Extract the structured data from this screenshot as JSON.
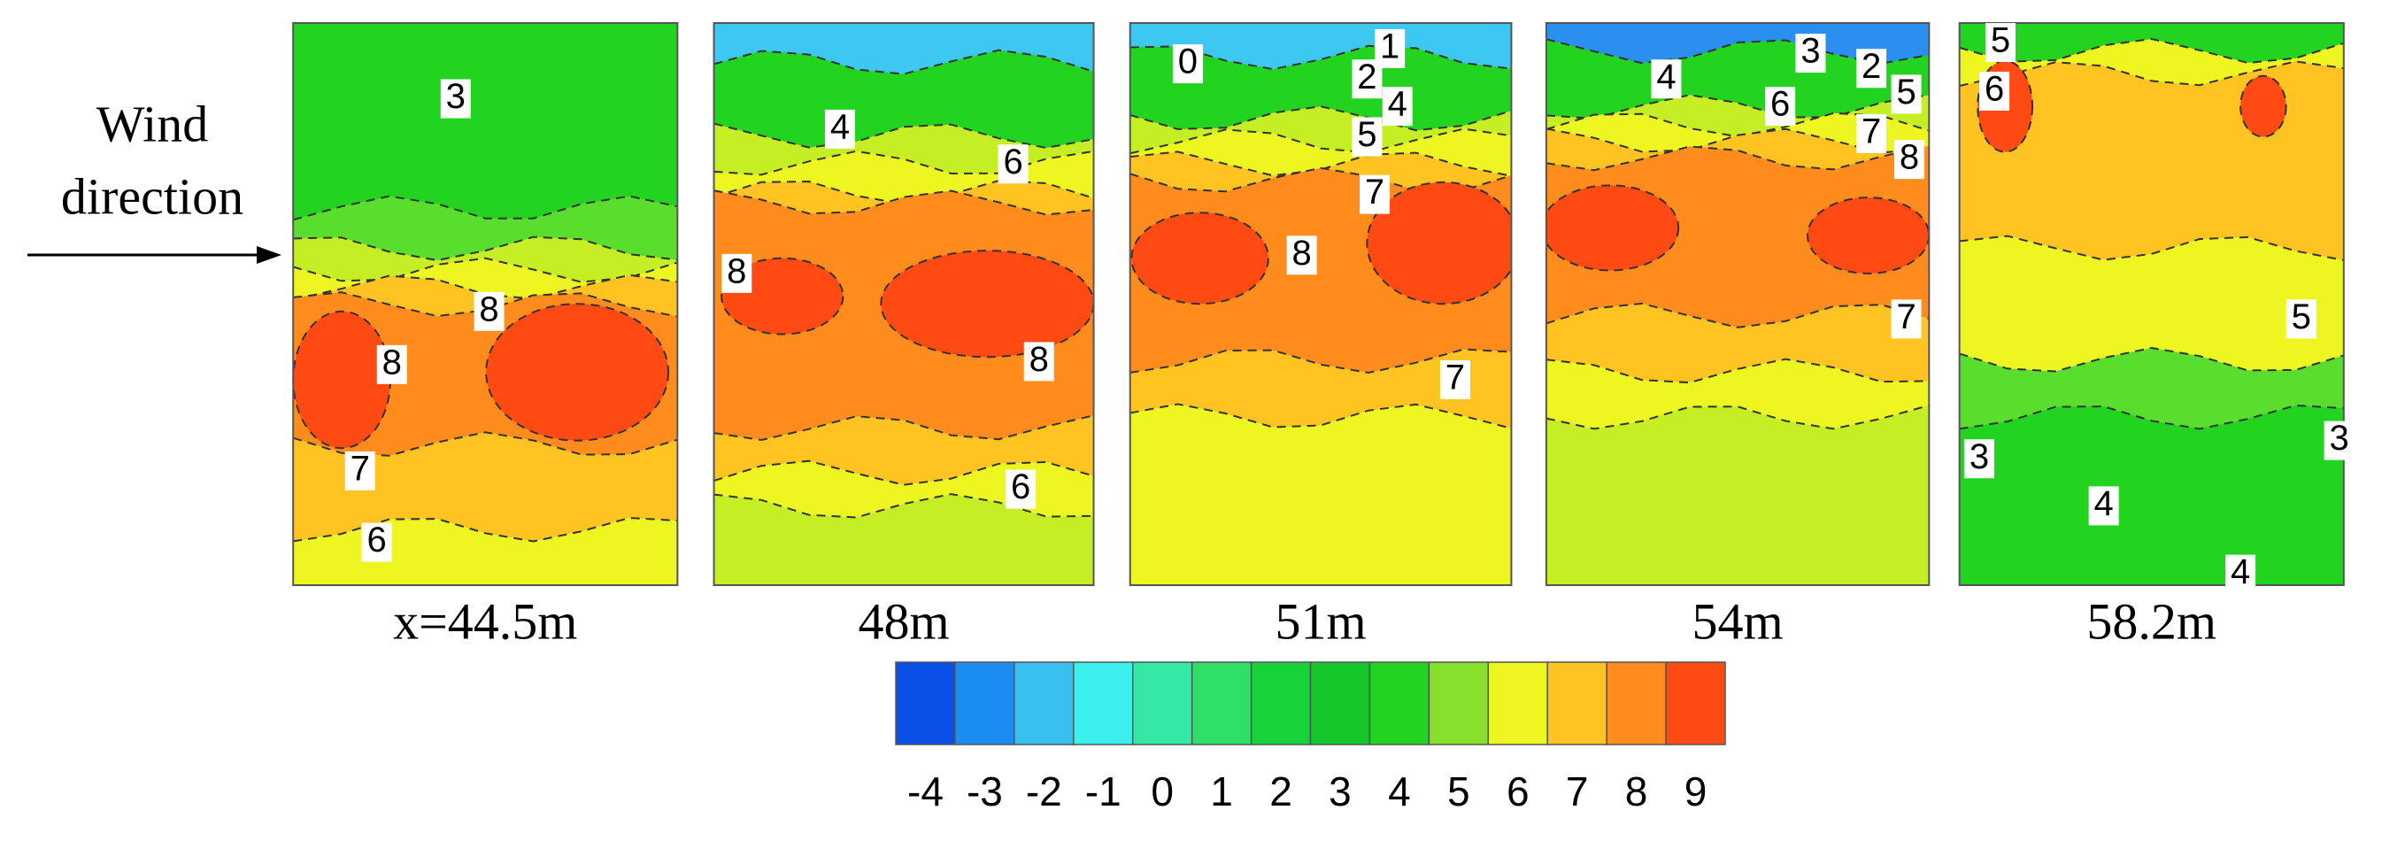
{
  "annotation": {
    "lines": [
      "Wind",
      "direction"
    ]
  },
  "panels": [
    {
      "label": "x=44.5m",
      "contour_labels": [
        3,
        8,
        8,
        7,
        6
      ]
    },
    {
      "label": "48m",
      "contour_labels": [
        4,
        6,
        8,
        8,
        6
      ]
    },
    {
      "label": "51m",
      "contour_labels": [
        0,
        2,
        1,
        4,
        5,
        7,
        8,
        7
      ]
    },
    {
      "label": "54m",
      "contour_labels": [
        4,
        3,
        6,
        2,
        5,
        7,
        8,
        7
      ]
    },
    {
      "label": "58.2m",
      "contour_labels": [
        5,
        6,
        5,
        3,
        4,
        3,
        4
      ]
    }
  ],
  "colorbar": {
    "ticks": [
      -4,
      -3,
      -2,
      -1,
      0,
      1,
      2,
      3,
      4,
      5,
      6,
      7,
      8,
      9
    ],
    "colors": [
      "#0a4fe6",
      "#1a8cf2",
      "#38c0f0",
      "#3cf0ee",
      "#34e8a6",
      "#2ee06a",
      "#18d23a",
      "#14c82c",
      "#22d420",
      "#86e02c",
      "#eef622",
      "#ffc421",
      "#ff8c1c",
      "#ff4a14"
    ]
  }
}
